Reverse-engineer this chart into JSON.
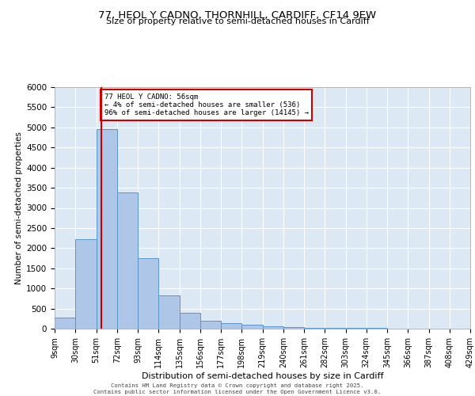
{
  "title_line1": "77, HEOL Y CADNO, THORNHILL, CARDIFF, CF14 9EW",
  "title_line2": "Size of property relative to semi-detached houses in Cardiff",
  "xlabel": "Distribution of semi-detached houses by size in Cardiff",
  "ylabel": "Number of semi-detached properties",
  "footer_line1": "Contains HM Land Registry data © Crown copyright and database right 2025.",
  "footer_line2": "Contains public sector information licensed under the Open Government Licence v3.0.",
  "property_size": 56,
  "property_label": "77 HEOL Y CADNO: 56sqm",
  "pct_smaller": 4,
  "count_smaller": 536,
  "pct_larger": 96,
  "count_larger": 14145,
  "bin_edges": [
    9,
    30,
    51,
    72,
    93,
    114,
    135,
    156,
    177,
    198,
    219,
    240,
    261,
    282,
    303,
    324,
    345,
    366,
    387,
    408,
    429
  ],
  "bin_counts": [
    270,
    2230,
    4950,
    3380,
    1750,
    820,
    400,
    200,
    140,
    100,
    60,
    40,
    25,
    20,
    15,
    10,
    8,
    5,
    4,
    3
  ],
  "bar_color": "#aec6e8",
  "bar_edge_color": "#5a96c8",
  "bar_linewidth": 0.7,
  "annotation_box_color": "#cc0000",
  "vline_color": "#cc0000",
  "background_color": "#dde8f5",
  "grid_color": "#ffffff",
  "fig_bg_color": "#ffffff",
  "ylim": [
    0,
    6000
  ],
  "yticks": [
    0,
    500,
    1000,
    1500,
    2000,
    2500,
    3000,
    3500,
    4000,
    4500,
    5000,
    5500,
    6000
  ]
}
